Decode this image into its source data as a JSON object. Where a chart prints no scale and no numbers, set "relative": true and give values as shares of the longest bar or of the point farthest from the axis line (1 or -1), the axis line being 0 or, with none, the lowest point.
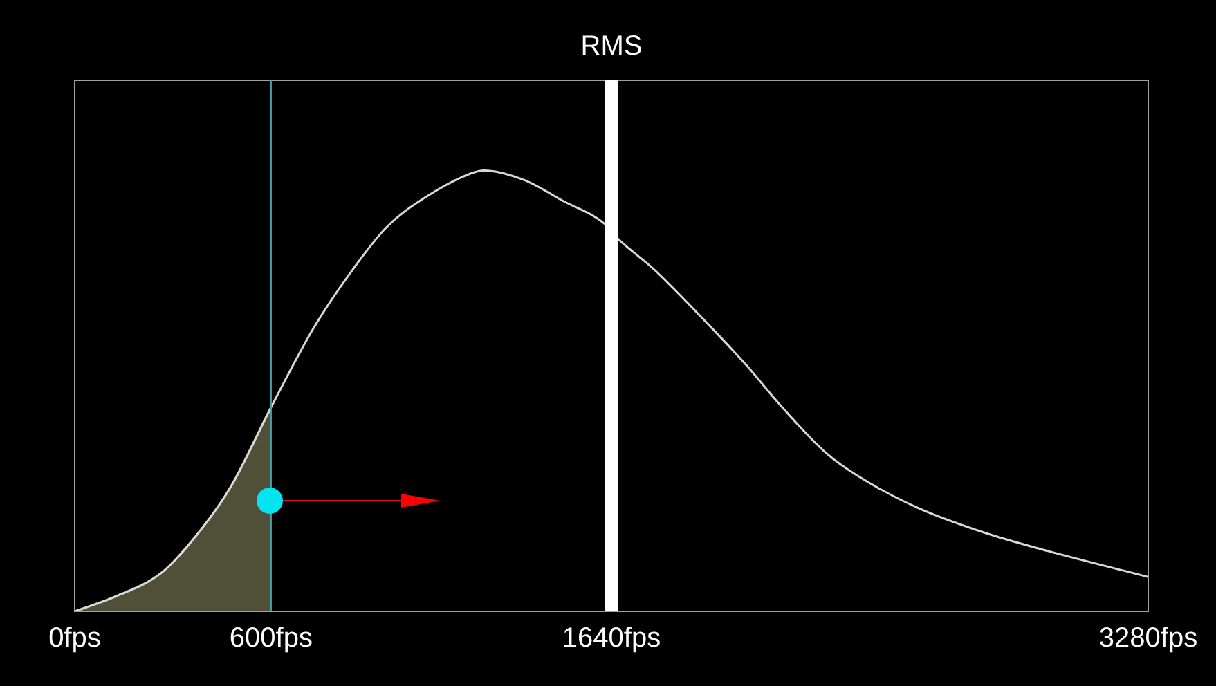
{
  "chart_data": {
    "type": "line",
    "relative": true,
    "xlim": [
      0,
      3280
    ],
    "xticks": [
      {
        "value": 0,
        "label": "0fps"
      },
      {
        "value": 600,
        "label": "600fps"
      },
      {
        "value": 1640,
        "label": "1640fps"
      },
      {
        "value": 3280,
        "label": "3280fps"
      }
    ],
    "grid": false,
    "legend": false,
    "marker": "none",
    "line_style": "solid",
    "series": [
      {
        "color": "#d8d8d8",
        "x": [
          0,
          123,
          266,
          376,
          478,
          596,
          731,
          858,
          955,
          1069,
          1209,
          1251,
          1378,
          1492,
          1619,
          1653,
          1771,
          1915,
          2055,
          2152,
          2296,
          2393,
          2575,
          2773,
          2972,
          3280
        ],
        "values": [
          0,
          0.033,
          0.088,
          0.176,
          0.284,
          0.457,
          0.644,
          0.784,
          0.873,
          0.938,
          0.993,
          1,
          0.977,
          0.931,
          0.879,
          0.85,
          0.775,
          0.667,
          0.556,
          0.471,
          0.359,
          0.307,
          0.235,
          0.18,
          0.137,
          0.078
        ]
      },
      {
        "type": "area",
        "color": "#a0a070",
        "x": [
          0,
          123,
          266,
          376,
          478,
          596,
          600
        ],
        "values": [
          0,
          0.033,
          0.088,
          0.176,
          0.284,
          0.457,
          0.463
        ]
      }
    ],
    "ref_lines": [
      {
        "axis": "x",
        "value": 600,
        "color": "#4aa3a8"
      },
      {
        "axis": "x",
        "value": 1640,
        "label": "RMS",
        "color": "#ffffff"
      }
    ]
  }
}
